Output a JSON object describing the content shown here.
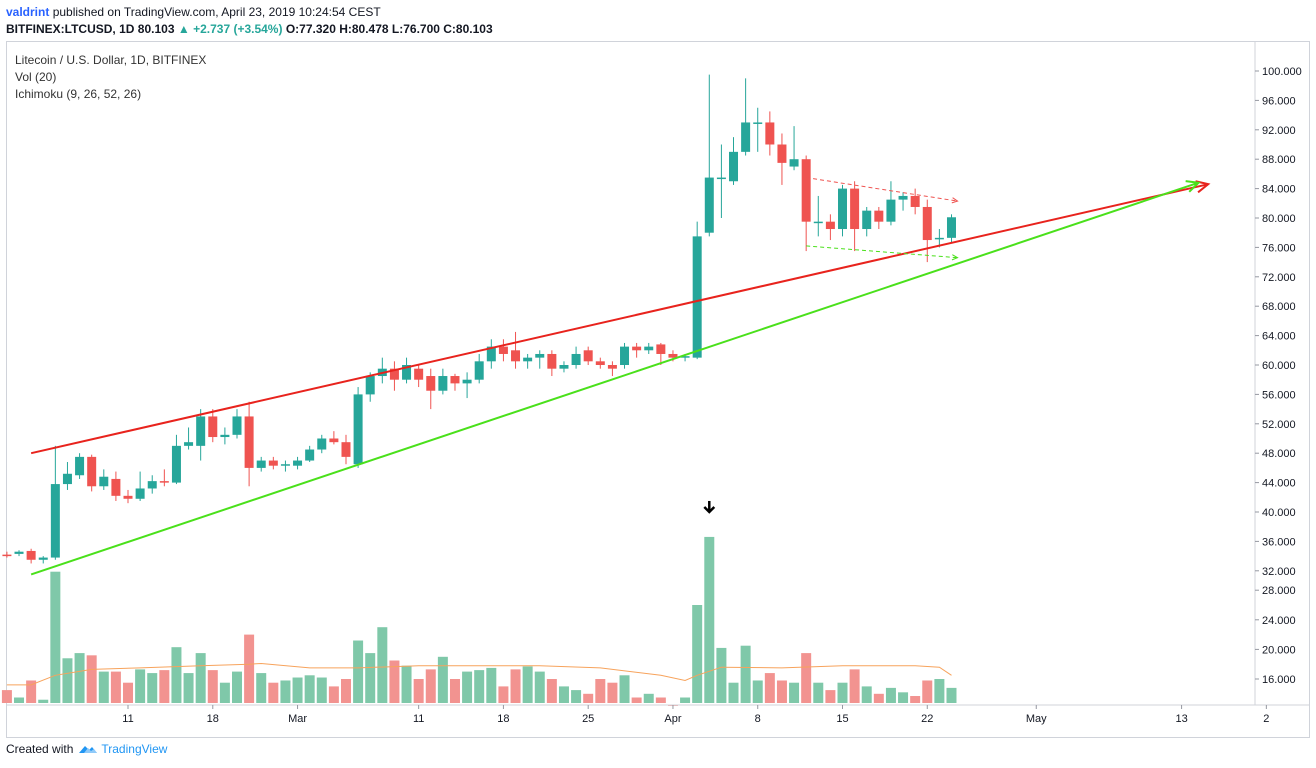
{
  "header": {
    "author": "valdrint",
    "publish_text": "published on TradingView.com, April 23, 2019 10:24:54 CEST",
    "symbol_line": "BITFINEX:LTCUSD, 1D",
    "last": "80.103",
    "change": "+2.737 (+3.54%)",
    "ohlc": "O:77.320 H:80.478 L:76.700 C:80.103"
  },
  "legend": {
    "title": "Litecoin / U.S. Dollar, 1D, BITFINEX",
    "vol": "Vol (20)",
    "ichimoku": "Ichimoku (9, 26, 52, 26)"
  },
  "footer": {
    "created": "Created with",
    "brand": "TradingView"
  },
  "colors": {
    "up": "#26a69a",
    "down": "#ef5350",
    "vol_up": "#7fc8a9",
    "vol_down": "#f29390",
    "vol_ma": "#f7a35c",
    "trend_red": "#e8231d",
    "trend_green": "#4ae01b"
  },
  "chart_data": {
    "type": "candlestick",
    "price_range": [
      30,
      102
    ],
    "volume_range": [
      10,
      40
    ],
    "y_ticks": [
      "100.000",
      "96.000",
      "92.000",
      "88.000",
      "84.000",
      "80.000",
      "76.000",
      "72.000",
      "68.000",
      "64.000",
      "60.000",
      "56.000",
      "52.000",
      "48.000",
      "44.000",
      "40.000",
      "36.000",
      "32.000",
      "28.000",
      "24.000",
      "20.000",
      "16.000"
    ],
    "x_ticks": [
      {
        "label": "11",
        "day": 11
      },
      {
        "label": "18",
        "day": 18
      },
      {
        "label": "Mar",
        "day": 25
      },
      {
        "label": "11",
        "day": 35
      },
      {
        "label": "18",
        "day": 42
      },
      {
        "label": "25",
        "day": 49
      },
      {
        "label": "Apr",
        "day": 56
      },
      {
        "label": "8",
        "day": 63
      },
      {
        "label": "15",
        "day": 70
      },
      {
        "label": "22",
        "day": 77
      },
      {
        "label": "May",
        "day": 86
      },
      {
        "label": "13",
        "day": 98
      },
      {
        "label": "2",
        "day": 105
      }
    ],
    "candles": [
      {
        "day": 1,
        "o": 34.2,
        "h": 34.6,
        "l": 33.8,
        "c": 34.0,
        "v": 14.5
      },
      {
        "day": 2,
        "o": 34.3,
        "h": 34.8,
        "l": 34.0,
        "c": 34.6,
        "v": 13.5
      },
      {
        "day": 3,
        "o": 34.7,
        "h": 35.0,
        "l": 33.0,
        "c": 33.5,
        "v": 15.8
      },
      {
        "day": 4,
        "o": 33.5,
        "h": 34.0,
        "l": 33.0,
        "c": 33.8,
        "v": 13.2
      },
      {
        "day": 5,
        "o": 33.8,
        "h": 49.0,
        "l": 33.5,
        "c": 43.8,
        "v": 30.5
      },
      {
        "day": 6,
        "o": 43.8,
        "h": 46.8,
        "l": 43.0,
        "c": 45.2,
        "v": 18.8
      },
      {
        "day": 7,
        "o": 45.0,
        "h": 48.0,
        "l": 44.5,
        "c": 47.5,
        "v": 19.5
      },
      {
        "day": 8,
        "o": 47.5,
        "h": 47.8,
        "l": 42.8,
        "c": 43.5,
        "v": 19.2
      },
      {
        "day": 9,
        "o": 43.5,
        "h": 45.8,
        "l": 43.0,
        "c": 44.8,
        "v": 17.0
      },
      {
        "day": 10,
        "o": 44.5,
        "h": 45.5,
        "l": 41.5,
        "c": 42.2,
        "v": 17.0
      },
      {
        "day": 11,
        "o": 42.2,
        "h": 43.0,
        "l": 41.2,
        "c": 41.8,
        "v": 15.5
      },
      {
        "day": 12,
        "o": 41.8,
        "h": 45.5,
        "l": 41.5,
        "c": 43.2,
        "v": 17.3
      },
      {
        "day": 13,
        "o": 43.2,
        "h": 45.0,
        "l": 42.5,
        "c": 44.2,
        "v": 16.8
      },
      {
        "day": 14,
        "o": 44.2,
        "h": 45.8,
        "l": 43.5,
        "c": 44.0,
        "v": 17.2
      },
      {
        "day": 15,
        "o": 44.0,
        "h": 50.5,
        "l": 43.8,
        "c": 49.0,
        "v": 20.3
      },
      {
        "day": 16,
        "o": 49.0,
        "h": 51.5,
        "l": 48.5,
        "c": 49.5,
        "v": 16.8
      },
      {
        "day": 17,
        "o": 49.0,
        "h": 54.0,
        "l": 47.0,
        "c": 53.0,
        "v": 19.5
      },
      {
        "day": 18,
        "o": 53.0,
        "h": 54.0,
        "l": 49.5,
        "c": 50.2,
        "v": 17.2
      },
      {
        "day": 19,
        "o": 50.2,
        "h": 51.5,
        "l": 49.2,
        "c": 50.5,
        "v": 15.5
      },
      {
        "day": 20,
        "o": 50.5,
        "h": 54.0,
        "l": 50.0,
        "c": 53.0,
        "v": 17.0
      },
      {
        "day": 21,
        "o": 53.0,
        "h": 55.0,
        "l": 43.5,
        "c": 46.0,
        "v": 22.0
      },
      {
        "day": 22,
        "o": 46.0,
        "h": 47.5,
        "l": 45.5,
        "c": 47.0,
        "v": 16.8
      },
      {
        "day": 23,
        "o": 47.0,
        "h": 47.5,
        "l": 45.8,
        "c": 46.3,
        "v": 15.5
      },
      {
        "day": 24,
        "o": 46.3,
        "h": 47.0,
        "l": 45.5,
        "c": 46.5,
        "v": 15.8
      },
      {
        "day": 25,
        "o": 46.3,
        "h": 47.5,
        "l": 45.8,
        "c": 47.0,
        "v": 16.2
      },
      {
        "day": 26,
        "o": 47.0,
        "h": 49.0,
        "l": 46.8,
        "c": 48.5,
        "v": 16.5
      },
      {
        "day": 27,
        "o": 48.5,
        "h": 50.5,
        "l": 48.0,
        "c": 50.0,
        "v": 16.2
      },
      {
        "day": 28,
        "o": 50.0,
        "h": 51.0,
        "l": 49.2,
        "c": 49.5,
        "v": 15.0
      },
      {
        "day": 29,
        "o": 49.5,
        "h": 50.5,
        "l": 46.5,
        "c": 47.5,
        "v": 16.0
      },
      {
        "day": 30,
        "o": 46.5,
        "h": 57.0,
        "l": 46.0,
        "c": 56.0,
        "v": 21.2
      },
      {
        "day": 31,
        "o": 56.0,
        "h": 59.0,
        "l": 55.0,
        "c": 58.5,
        "v": 19.5
      },
      {
        "day": 32,
        "o": 58.5,
        "h": 61.0,
        "l": 57.5,
        "c": 59.5,
        "v": 23.0
      },
      {
        "day": 33,
        "o": 59.5,
        "h": 60.5,
        "l": 56.5,
        "c": 58.0,
        "v": 18.5
      },
      {
        "day": 34,
        "o": 58.0,
        "h": 61.0,
        "l": 57.5,
        "c": 60.0,
        "v": 17.8
      },
      {
        "day": 35,
        "o": 59.5,
        "h": 60.0,
        "l": 57.0,
        "c": 58.0,
        "v": 16.0
      },
      {
        "day": 36,
        "o": 58.5,
        "h": 59.5,
        "l": 54.0,
        "c": 56.5,
        "v": 17.3
      },
      {
        "day": 37,
        "o": 56.5,
        "h": 59.5,
        "l": 56.0,
        "c": 58.5,
        "v": 19.0
      },
      {
        "day": 38,
        "o": 58.5,
        "h": 58.8,
        "l": 56.5,
        "c": 57.5,
        "v": 16.0
      },
      {
        "day": 39,
        "o": 57.5,
        "h": 59.0,
        "l": 55.5,
        "c": 58.0,
        "v": 17.0
      },
      {
        "day": 40,
        "o": 58.0,
        "h": 61.5,
        "l": 57.5,
        "c": 60.5,
        "v": 17.2
      },
      {
        "day": 41,
        "o": 60.5,
        "h": 63.5,
        "l": 59.5,
        "c": 62.5,
        "v": 17.5
      },
      {
        "day": 42,
        "o": 62.5,
        "h": 63.5,
        "l": 60.5,
        "c": 61.5,
        "v": 15.0
      },
      {
        "day": 43,
        "o": 62.0,
        "h": 64.5,
        "l": 59.5,
        "c": 60.5,
        "v": 17.3
      },
      {
        "day": 44,
        "o": 60.5,
        "h": 61.5,
        "l": 59.5,
        "c": 61.0,
        "v": 17.7
      },
      {
        "day": 45,
        "o": 61.0,
        "h": 62.0,
        "l": 59.5,
        "c": 61.5,
        "v": 17.0
      },
      {
        "day": 46,
        "o": 61.5,
        "h": 62.0,
        "l": 58.5,
        "c": 59.5,
        "v": 16.0
      },
      {
        "day": 47,
        "o": 59.5,
        "h": 60.5,
        "l": 59.0,
        "c": 60.0,
        "v": 15.0
      },
      {
        "day": 48,
        "o": 60.0,
        "h": 62.5,
        "l": 59.5,
        "c": 61.5,
        "v": 14.5
      },
      {
        "day": 49,
        "o": 62.0,
        "h": 62.5,
        "l": 60.0,
        "c": 60.5,
        "v": 14.0
      },
      {
        "day": 50,
        "o": 60.5,
        "h": 61.0,
        "l": 59.5,
        "c": 60.0,
        "v": 16.0
      },
      {
        "day": 51,
        "o": 60.0,
        "h": 60.5,
        "l": 58.5,
        "c": 59.5,
        "v": 15.5
      },
      {
        "day": 52,
        "o": 60.0,
        "h": 63.0,
        "l": 59.5,
        "c": 62.5,
        "v": 16.5
      },
      {
        "day": 53,
        "o": 62.5,
        "h": 63.0,
        "l": 61.0,
        "c": 62.0,
        "v": 13.5
      },
      {
        "day": 54,
        "o": 62.0,
        "h": 63.0,
        "l": 61.5,
        "c": 62.5,
        "v": 14.0
      },
      {
        "day": 55,
        "o": 62.8,
        "h": 63.0,
        "l": 60.0,
        "c": 61.5,
        "v": 13.5
      },
      {
        "day": 56,
        "o": 61.5,
        "h": 62.0,
        "l": 60.5,
        "c": 61.0,
        "v": 12.5
      },
      {
        "day": 57,
        "o": 61.0,
        "h": 61.5,
        "l": 60.5,
        "c": 61.2,
        "v": 13.5
      },
      {
        "day": 58,
        "o": 61.0,
        "h": 79.5,
        "l": 60.8,
        "c": 77.5,
        "v": 26.0
      },
      {
        "day": 59,
        "o": 78.0,
        "h": 99.5,
        "l": 77.5,
        "c": 85.5,
        "v": 35.2
      },
      {
        "day": 60,
        "o": 85.5,
        "h": 90.0,
        "l": 80.0,
        "c": 85.5,
        "v": 20.2
      },
      {
        "day": 61,
        "o": 85.0,
        "h": 91.0,
        "l": 84.5,
        "c": 89.0,
        "v": 15.5
      },
      {
        "day": 62,
        "o": 89.0,
        "h": 99.0,
        "l": 88.5,
        "c": 93.0,
        "v": 20.5
      },
      {
        "day": 63,
        "o": 93.0,
        "h": 95.0,
        "l": 89.0,
        "c": 93.0,
        "v": 15.8
      },
      {
        "day": 64,
        "o": 93.0,
        "h": 94.5,
        "l": 88.5,
        "c": 90.0,
        "v": 16.8
      },
      {
        "day": 65,
        "o": 90.0,
        "h": 91.5,
        "l": 84.5,
        "c": 87.5,
        "v": 15.8
      },
      {
        "day": 66,
        "o": 87.0,
        "h": 92.5,
        "l": 86.5,
        "c": 88.0,
        "v": 15.5
      },
      {
        "day": 67,
        "o": 88.0,
        "h": 88.5,
        "l": 75.5,
        "c": 79.5,
        "v": 19.5
      },
      {
        "day": 68,
        "o": 79.5,
        "h": 83.0,
        "l": 77.5,
        "c": 79.5,
        "v": 15.5
      },
      {
        "day": 69,
        "o": 79.5,
        "h": 80.5,
        "l": 77.0,
        "c": 78.5,
        "v": 14.5
      },
      {
        "day": 70,
        "o": 78.5,
        "h": 84.5,
        "l": 77.5,
        "c": 84.0,
        "v": 15.5
      },
      {
        "day": 71,
        "o": 84.0,
        "h": 85.0,
        "l": 75.5,
        "c": 78.5,
        "v": 17.3
      },
      {
        "day": 72,
        "o": 78.5,
        "h": 81.5,
        "l": 77.5,
        "c": 81.0,
        "v": 15.0
      },
      {
        "day": 73,
        "o": 81.0,
        "h": 81.5,
        "l": 78.5,
        "c": 79.5,
        "v": 14.0
      },
      {
        "day": 74,
        "o": 79.5,
        "h": 85.0,
        "l": 79.0,
        "c": 82.5,
        "v": 14.8
      },
      {
        "day": 75,
        "o": 82.5,
        "h": 83.5,
        "l": 81.0,
        "c": 83.0,
        "v": 14.2
      },
      {
        "day": 76,
        "o": 83.0,
        "h": 84.0,
        "l": 80.5,
        "c": 81.5,
        "v": 13.7
      },
      {
        "day": 77,
        "o": 81.5,
        "h": 82.5,
        "l": 74.0,
        "c": 77.0,
        "v": 15.8
      },
      {
        "day": 78,
        "o": 77.3,
        "h": 78.5,
        "l": 76.0,
        "c": 77.3,
        "v": 16.0
      },
      {
        "day": 79,
        "o": 77.3,
        "h": 80.5,
        "l": 76.7,
        "c": 80.1,
        "v": 14.8
      }
    ],
    "volume_ma": [
      {
        "day": 1,
        "v": 15.2
      },
      {
        "day": 3,
        "v": 15.2
      },
      {
        "day": 5,
        "v": 16.5
      },
      {
        "day": 8,
        "v": 17.3
      },
      {
        "day": 12,
        "v": 17.5
      },
      {
        "day": 17,
        "v": 17.8
      },
      {
        "day": 21,
        "v": 18.0
      },
      {
        "day": 22,
        "v": 18.1
      },
      {
        "day": 26,
        "v": 17.5
      },
      {
        "day": 30,
        "v": 17.5
      },
      {
        "day": 35,
        "v": 17.8
      },
      {
        "day": 45,
        "v": 17.8
      },
      {
        "day": 50,
        "v": 17.5
      },
      {
        "day": 55,
        "v": 16.5
      },
      {
        "day": 57,
        "v": 15.8
      },
      {
        "day": 58,
        "v": 16.5
      },
      {
        "day": 60,
        "v": 17.6
      },
      {
        "day": 65,
        "v": 17.5
      },
      {
        "day": 70,
        "v": 17.8
      },
      {
        "day": 76,
        "v": 17.8
      },
      {
        "day": 78,
        "v": 17.6
      },
      {
        "day": 79,
        "v": 16.5
      }
    ],
    "trendlines": [
      {
        "name": "upper-trendline",
        "color": "#e8231d",
        "from": {
          "day": 3,
          "price": 48.0
        },
        "to": {
          "day": 100.2,
          "price": 84.6
        },
        "arrow": true
      },
      {
        "name": "lower-trendline",
        "color": "#4ae01b",
        "from": {
          "day": 3,
          "price": 31.5
        },
        "to": {
          "day": 99.4,
          "price": 84.8
        },
        "arrow": true
      },
      {
        "name": "flag-top",
        "color": "#ef5350",
        "dashed": true,
        "from": {
          "day": 67,
          "price": 85.5
        },
        "to": {
          "day": 79.5,
          "price": 82.3
        },
        "arrow": true
      },
      {
        "name": "flag-bottom",
        "color": "#4ae01b",
        "dashed": true,
        "from": {
          "day": 67,
          "price": 76.2
        },
        "to": {
          "day": 79.5,
          "price": 74.6
        },
        "arrow": true
      }
    ],
    "annotation": {
      "name": "down-arrow-marker",
      "day": 59,
      "price": 41.5
    }
  }
}
